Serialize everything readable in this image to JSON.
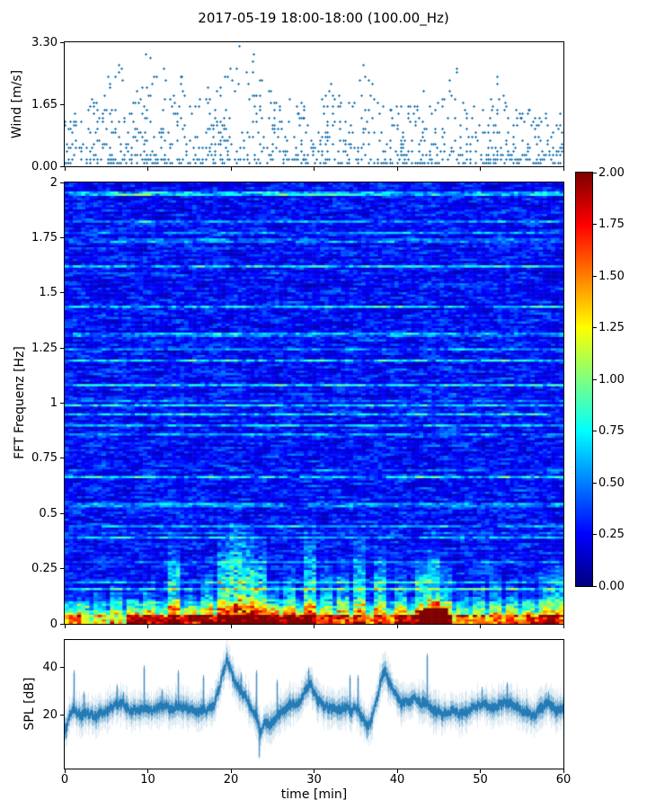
{
  "figure": {
    "title": "2017-05-19 18:00-18:00 (100.00_Hz)",
    "background": "#ffffff",
    "axis_color": "#000000",
    "series_color": "#1f77b4"
  },
  "chart_data": [
    {
      "id": "wind",
      "type": "scatter",
      "ylabel": "Wind [m/s]",
      "xlim": [
        0,
        60
      ],
      "ylim": [
        0,
        3.3
      ],
      "yticks": {
        "values": [
          3.3,
          1.65,
          0
        ],
        "labels": [
          "3.30",
          "1.65",
          "0.00"
        ]
      },
      "xticks": {
        "values": [
          0,
          10,
          20,
          30,
          40,
          50,
          60
        ]
      },
      "marker": "plus",
      "marker_color": "#1f77b4",
      "points_per_minute": 15,
      "quantize_step": 0.1,
      "time_grid_min": 0.215,
      "envelope_t_step": 1,
      "envelope_max": [
        1.2,
        1.4,
        1.3,
        1.9,
        1.6,
        2.3,
        2.9,
        2.5,
        1.7,
        2.2,
        3.3,
        2.4,
        2.6,
        1.9,
        2.5,
        1.6,
        1.7,
        2.1,
        1.9,
        2.4,
        2.6,
        3.2,
        2.3,
        3.25,
        2.2,
        1.9,
        1.6,
        1.8,
        1.6,
        1.8,
        2.0,
        1.8,
        2.2,
        1.9,
        1.6,
        2.4,
        2.7,
        2.2,
        1.7,
        1.5,
        1.6,
        1.8,
        1.6,
        2.0,
        1.5,
        1.7,
        2.3,
        2.75,
        1.6,
        1.5,
        1.8,
        1.6,
        2.4,
        1.7,
        1.5,
        1.4,
        1.5,
        1.3,
        1.4,
        1.6,
        1.5
      ],
      "seed": 11
    },
    {
      "id": "spectrogram",
      "type": "heatmap",
      "ylabel": "FFT Frequenz [Hz]",
      "xlim": [
        0,
        60
      ],
      "ylim": [
        0,
        2
      ],
      "yticks": {
        "values": [
          2,
          1.75,
          1.5,
          1.25,
          1,
          0.75,
          0.5,
          0.25,
          0
        ],
        "labels": [
          "2",
          "1.75",
          "1.5",
          "1.25",
          "1",
          "0.75",
          "0.5",
          "0.25",
          "0"
        ]
      },
      "xticks": {
        "values": [
          0,
          10,
          20,
          30,
          40,
          50,
          60
        ]
      },
      "colormap": "jet",
      "clim": [
        0,
        2
      ],
      "grid": {
        "cols": 121,
        "rows": 197
      },
      "base_range": [
        0.08,
        0.6
      ],
      "bright_row_probability": 0.16,
      "bursts": [
        [
          2,
          0.15,
          0.7
        ],
        [
          4,
          0.18,
          0.6
        ],
        [
          6,
          0.22,
          0.8
        ],
        [
          8,
          0.16,
          0.6
        ],
        [
          10,
          0.2,
          0.7
        ],
        [
          13,
          0.42,
          1.1
        ],
        [
          15,
          0.18,
          0.6
        ],
        [
          17,
          0.28,
          0.8
        ],
        [
          19,
          0.48,
          1.2
        ],
        [
          20.5,
          0.52,
          1.3
        ],
        [
          22,
          0.48,
          1.2
        ],
        [
          23.5,
          0.42,
          1.1
        ],
        [
          25,
          0.22,
          0.7
        ],
        [
          27,
          0.28,
          0.8
        ],
        [
          29.5,
          0.45,
          1.1
        ],
        [
          31.5,
          0.28,
          0.7
        ],
        [
          33.5,
          0.32,
          0.9
        ],
        [
          35.5,
          0.42,
          1.0
        ],
        [
          38,
          0.38,
          1.0
        ],
        [
          40.5,
          0.28,
          0.8
        ],
        [
          43,
          0.32,
          1.2
        ],
        [
          44.5,
          0.38,
          1.4
        ],
        [
          46,
          0.28,
          0.9
        ],
        [
          48,
          0.18,
          0.6
        ],
        [
          50,
          0.22,
          0.7
        ],
        [
          52,
          0.28,
          0.8
        ],
        [
          54,
          0.22,
          0.7
        ],
        [
          56,
          0.18,
          0.6
        ],
        [
          58,
          0.28,
          0.9
        ],
        [
          59.5,
          0.32,
          0.9
        ]
      ],
      "bottom_band": [
        [
          0,
          2,
          1.2
        ],
        [
          2,
          7.5,
          0.8
        ],
        [
          7.5,
          19,
          1.5
        ],
        [
          19,
          30,
          1.7
        ],
        [
          30,
          40,
          1.2
        ],
        [
          40,
          47,
          1.5
        ],
        [
          47,
          56,
          1.1
        ],
        [
          56,
          60,
          1.4
        ]
      ],
      "hot_blob": {
        "t": [
          43,
          46.3
        ],
        "f_max": 0.07,
        "value": 2.0
      },
      "colorbar": {
        "ticks": {
          "values": [
            2,
            1.75,
            1.5,
            1.25,
            1,
            0.75,
            0.5,
            0.25,
            0
          ],
          "labels": [
            "2.00",
            "1.75",
            "1.50",
            "1.25",
            "1.00",
            "0.75",
            "0.50",
            "0.25",
            "0.00"
          ]
        }
      },
      "seed": 42
    },
    {
      "id": "spl",
      "type": "line",
      "ylabel": "SPL [dB]",
      "xlabel": "time [min]",
      "xlim": [
        0,
        60
      ],
      "ylim": [
        -2.3,
        51.7
      ],
      "yticks": {
        "values": [
          40,
          20
        ],
        "labels": [
          "40",
          "20"
        ]
      },
      "xticks": {
        "values": [
          0,
          10,
          20,
          30,
          40,
          50,
          60
        ],
        "labels": [
          "0",
          "10",
          "20",
          "30",
          "40",
          "50",
          "60"
        ]
      },
      "line_color": "#1f77b4",
      "t_step": 0.5,
      "y": [
        14,
        19,
        22,
        21,
        20,
        21,
        20,
        20,
        20,
        21,
        22,
        23,
        24,
        25,
        25,
        23,
        22,
        22,
        22,
        23,
        23,
        22,
        23,
        24,
        24,
        23,
        23,
        24,
        24,
        23,
        22,
        22,
        22,
        23,
        22,
        23,
        25,
        31,
        38,
        43,
        38,
        33,
        31,
        29,
        26,
        23,
        21,
        13,
        17,
        16,
        17,
        19,
        22,
        22,
        23,
        24,
        25,
        27,
        32,
        34,
        30,
        27,
        25,
        24,
        23,
        23,
        23,
        23,
        24,
        23,
        24,
        21,
        18,
        16,
        19,
        26,
        34,
        39,
        35,
        30,
        27,
        25,
        26,
        27,
        28,
        27,
        25,
        25,
        24,
        22,
        22,
        21,
        22,
        22,
        21,
        21,
        22,
        22,
        23,
        23,
        24,
        25,
        24,
        23,
        24,
        25,
        26,
        25,
        24,
        23,
        22,
        21,
        21,
        20,
        22,
        23,
        25,
        24,
        22,
        23,
        23
      ],
      "spikes": [
        [
          1.05,
          39
        ],
        [
          2.3,
          30
        ],
        [
          6.3,
          33
        ],
        [
          7.0,
          30
        ],
        [
          9.55,
          41
        ],
        [
          11.7,
          31
        ],
        [
          13.7,
          39
        ],
        [
          16.7,
          37
        ],
        [
          21.2,
          38
        ],
        [
          23.05,
          39
        ],
        [
          25.6,
          35
        ],
        [
          29.3,
          40
        ],
        [
          34.3,
          37
        ],
        [
          35.3,
          37
        ],
        [
          43.7,
          46
        ],
        [
          50.3,
          32
        ],
        [
          53.3,
          34
        ],
        [
          58.3,
          30
        ]
      ],
      "dips": [
        [
          0.1,
          10
        ],
        [
          23.4,
          2
        ],
        [
          36.4,
          10
        ]
      ],
      "noise_band_db": 4,
      "seed": 5
    }
  ]
}
